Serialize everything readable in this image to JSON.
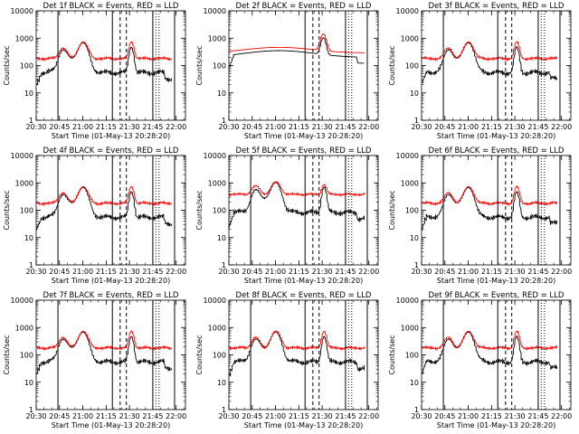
{
  "figure": {
    "background": "#ffffff",
    "colors": {
      "events": "#000000",
      "lld": "#ff0000",
      "axes": "#000000"
    }
  },
  "chart_data": [
    {
      "type": "line",
      "title": "Det 1f BLACK = Events, RED = LLD",
      "xlabel": "Start Time (01-May-13 20:28:20)",
      "ylabel": "Counts/sec",
      "y_scale": "log",
      "ylim": [
        1,
        10000
      ],
      "xlim": [
        "20:30",
        "22:06"
      ],
      "x_ticks": [
        "20:30",
        "20:45",
        "21:00",
        "21:15",
        "21:30",
        "21:45",
        "22:00"
      ],
      "y_ticks": [
        "1",
        "10",
        "100",
        "1000",
        "10000"
      ],
      "markers": {
        "solid": [
          "20:44",
          "21:19",
          "21:45",
          "21:59"
        ],
        "dashed": [
          "21:24",
          "21:28"
        ],
        "dotted": [
          "21:47",
          "21:49"
        ]
      },
      "series": [
        {
          "name": "BLACK = Events",
          "color": "#000000",
          "data": []
        },
        {
          "name": "RED = LLD",
          "color": "#ff0000",
          "data": []
        }
      ]
    },
    {
      "type": "line",
      "title": "Det 2f BLACK = Events, RED = LLD",
      "xlabel": "Start Time (01-May-13 20:28:20)",
      "ylabel": "Counts/sec",
      "y_scale": "log",
      "ylim": [
        1,
        10000
      ],
      "xlim": [
        "20:30",
        "22:06"
      ],
      "x_ticks": [
        "20:30",
        "20:45",
        "21:00",
        "21:15",
        "21:30",
        "21:45",
        "22:00"
      ],
      "y_ticks": [
        "1",
        "10",
        "100",
        "1000",
        "10000"
      ],
      "markers": {
        "solid": [
          "21:19",
          "21:45",
          "21:59"
        ],
        "dashed": [
          "21:24",
          "21:28"
        ],
        "dotted": [
          "21:47",
          "21:49"
        ]
      },
      "series": [
        {
          "name": "BLACK = Events",
          "color": "#000000",
          "data": []
        },
        {
          "name": "RED = LLD",
          "color": "#ff0000",
          "data": []
        }
      ]
    },
    {
      "type": "line",
      "title": "Det 3f BLACK = Events, RED = LLD",
      "xlabel": "Start Time (01-May-13 20:28:20)",
      "ylabel": "Counts/sec",
      "y_scale": "log",
      "ylim": [
        1,
        10000
      ],
      "xlim": [
        "20:30",
        "22:06"
      ],
      "x_ticks": [
        "20:30",
        "20:45",
        "21:00",
        "21:15",
        "21:30",
        "21:45",
        "22:00"
      ],
      "y_ticks": [
        "1",
        "10",
        "100",
        "1000",
        "10000"
      ],
      "markers": {
        "solid": [
          "20:44",
          "21:19",
          "21:45",
          "21:59"
        ],
        "dashed": [
          "21:24",
          "21:28"
        ],
        "dotted": [
          "21:47",
          "21:49"
        ]
      },
      "series": [
        {
          "name": "BLACK = Events",
          "color": "#000000",
          "data": []
        },
        {
          "name": "RED = LLD",
          "color": "#ff0000",
          "data": []
        }
      ]
    },
    {
      "type": "line",
      "title": "Det 4f BLACK = Events, RED = LLD",
      "xlabel": "Start Time (01-May-13 20:28:20)",
      "ylabel": "Counts/sec",
      "y_scale": "log",
      "ylim": [
        1,
        10000
      ],
      "xlim": [
        "20:30",
        "22:06"
      ],
      "x_ticks": [
        "20:30",
        "20:45",
        "21:00",
        "21:15",
        "21:30",
        "21:45",
        "22:00"
      ],
      "y_ticks": [
        "1",
        "10",
        "100",
        "1000",
        "10000"
      ],
      "markers": {
        "solid": [
          "20:44",
          "21:19",
          "21:45",
          "21:59"
        ],
        "dashed": [
          "21:24",
          "21:28"
        ],
        "dotted": [
          "21:47",
          "21:49"
        ]
      },
      "series": [
        {
          "name": "BLACK = Events",
          "color": "#000000",
          "data": []
        },
        {
          "name": "RED = LLD",
          "color": "#ff0000",
          "data": []
        }
      ]
    },
    {
      "type": "line",
      "title": "Det 5f BLACK = Events, RED = LLD",
      "xlabel": "Start Time (01-May-13 20:28:20)",
      "ylabel": "Counts/sec",
      "y_scale": "log",
      "ylim": [
        1,
        10000
      ],
      "xlim": [
        "20:30",
        "22:06"
      ],
      "x_ticks": [
        "20:30",
        "20:45",
        "21:00",
        "21:15",
        "21:30",
        "21:45",
        "22:00"
      ],
      "y_ticks": [
        "1",
        "10",
        "100",
        "1000",
        "10000"
      ],
      "markers": {
        "solid": [
          "20:44",
          "21:19",
          "21:45",
          "21:59"
        ],
        "dashed": [
          "21:24",
          "21:28"
        ],
        "dotted": [
          "21:47",
          "21:49"
        ]
      },
      "series": [
        {
          "name": "BLACK = Events",
          "color": "#000000",
          "data": []
        },
        {
          "name": "RED = LLD",
          "color": "#ff0000",
          "data": []
        }
      ]
    },
    {
      "type": "line",
      "title": "Det 6f BLACK = Events, RED = LLD",
      "xlabel": "Start Time (01-May-13 20:28:20)",
      "ylabel": "Counts/sec",
      "y_scale": "log",
      "ylim": [
        1,
        10000
      ],
      "xlim": [
        "20:30",
        "22:06"
      ],
      "x_ticks": [
        "20:30",
        "20:45",
        "21:00",
        "21:15",
        "21:30",
        "21:45",
        "22:00"
      ],
      "y_ticks": [
        "1",
        "10",
        "100",
        "1000",
        "10000"
      ],
      "markers": {
        "solid": [
          "20:44",
          "21:19",
          "21:45",
          "21:59"
        ],
        "dashed": [
          "21:24",
          "21:28"
        ],
        "dotted": [
          "21:47",
          "21:49"
        ]
      },
      "series": [
        {
          "name": "BLACK = Events",
          "color": "#000000",
          "data": []
        },
        {
          "name": "RED = LLD",
          "color": "#ff0000",
          "data": []
        }
      ]
    },
    {
      "type": "line",
      "title": "Det 7f BLACK = Events, RED = LLD",
      "xlabel": "Start Time (01-May-13 20:28:20)",
      "ylabel": "Counts/sec",
      "y_scale": "log",
      "ylim": [
        1,
        10000
      ],
      "xlim": [
        "20:30",
        "22:06"
      ],
      "x_ticks": [
        "20:30",
        "20:45",
        "21:00",
        "21:15",
        "21:30",
        "21:45",
        "22:00"
      ],
      "y_ticks": [
        "1",
        "10",
        "100",
        "1000",
        "10000"
      ],
      "markers": {
        "solid": [
          "20:44",
          "21:19",
          "21:45",
          "21:59"
        ],
        "dashed": [
          "21:24",
          "21:28"
        ],
        "dotted": [
          "21:47",
          "21:49"
        ]
      },
      "series": [
        {
          "name": "BLACK = Events",
          "color": "#000000",
          "data": []
        },
        {
          "name": "RED = LLD",
          "color": "#ff0000",
          "data": []
        }
      ]
    },
    {
      "type": "line",
      "title": "Det 8f BLACK = Events, RED = LLD",
      "xlabel": "Start Time (01-May-13 20:28:20)",
      "ylabel": "Counts/sec",
      "y_scale": "log",
      "ylim": [
        1,
        10000
      ],
      "xlim": [
        "20:30",
        "22:06"
      ],
      "x_ticks": [
        "20:30",
        "20:45",
        "21:00",
        "21:15",
        "21:30",
        "21:45",
        "22:00"
      ],
      "y_ticks": [
        "1",
        "10",
        "100",
        "1000",
        "10000"
      ],
      "markers": {
        "solid": [
          "20:44",
          "21:19",
          "21:45",
          "21:59"
        ],
        "dashed": [
          "21:24",
          "21:28"
        ],
        "dotted": [
          "21:47",
          "21:49"
        ]
      },
      "series": [
        {
          "name": "BLACK = Events",
          "color": "#000000",
          "data": []
        },
        {
          "name": "RED = LLD",
          "color": "#ff0000",
          "data": []
        }
      ]
    },
    {
      "type": "line",
      "title": "Det 9f BLACK = Events, RED = LLD",
      "xlabel": "Start Time (01-May-13 20:28:20)",
      "ylabel": "Counts/sec",
      "y_scale": "log",
      "ylim": [
        1,
        10000
      ],
      "xlim": [
        "20:30",
        "22:06"
      ],
      "x_ticks": [
        "20:30",
        "20:45",
        "21:00",
        "21:15",
        "21:30",
        "21:45",
        "22:00"
      ],
      "y_ticks": [
        "1",
        "10",
        "100",
        "1000",
        "10000"
      ],
      "markers": {
        "solid": [
          "20:44",
          "21:19",
          "21:45",
          "21:59"
        ],
        "dashed": [
          "21:24",
          "21:28"
        ],
        "dotted": [
          "21:47",
          "21:49"
        ]
      },
      "series": [
        {
          "name": "BLACK = Events",
          "color": "#000000",
          "data": []
        },
        {
          "name": "RED = LLD",
          "color": "#ff0000",
          "data": []
        }
      ]
    }
  ]
}
